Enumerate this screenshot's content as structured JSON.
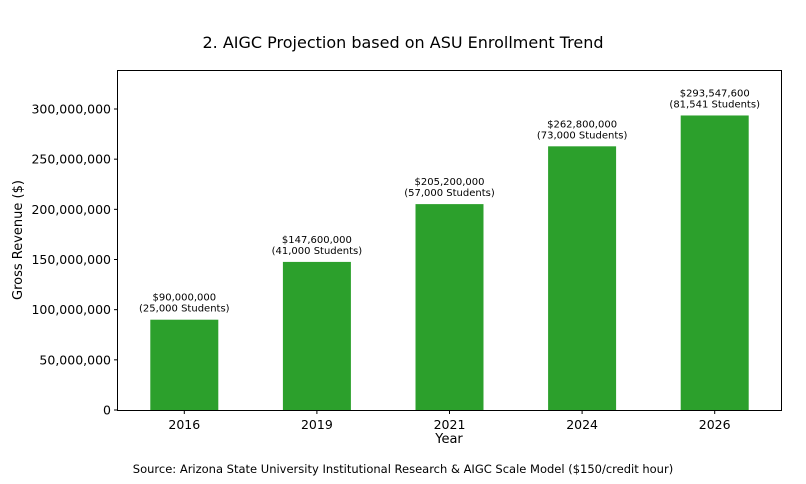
{
  "title": "2. AIGC Projection based on ASU Enrollment Trend",
  "source": "Source: Arizona State University Institutional Research & AIGC Scale Model ($150/credit hour)",
  "chart_data": {
    "type": "bar",
    "title": "2. AIGC Projection based on ASU Enrollment Trend",
    "xlabel": "Year",
    "ylabel": "Gross Revenue ($)",
    "categories": [
      "2016",
      "2019",
      "2021",
      "2024",
      "2026"
    ],
    "values": [
      90000000,
      147600000,
      205200000,
      262800000,
      293547600
    ],
    "data_labels": [
      [
        "$90,000,000",
        "(25,000 Students)"
      ],
      [
        "$147,600,000",
        "(41,000 Students)"
      ],
      [
        "$205,200,000",
        "(57,000 Students)"
      ],
      [
        "$262,800,000",
        "(73,000 Students)"
      ],
      [
        "$293,547,600",
        "(81,541 Students)"
      ]
    ],
    "ylim": [
      0,
      330000000
    ],
    "yticks": [
      0,
      50000000,
      100000000,
      150000000,
      200000000,
      250000000,
      300000000
    ],
    "ytick_labels": [
      "0",
      "50,000,000",
      "100,000,000",
      "150,000,000",
      "200,000,000",
      "250,000,000",
      "300,000,000"
    ],
    "bar_color": "#2ca02c",
    "grid": false,
    "legend": "none"
  }
}
